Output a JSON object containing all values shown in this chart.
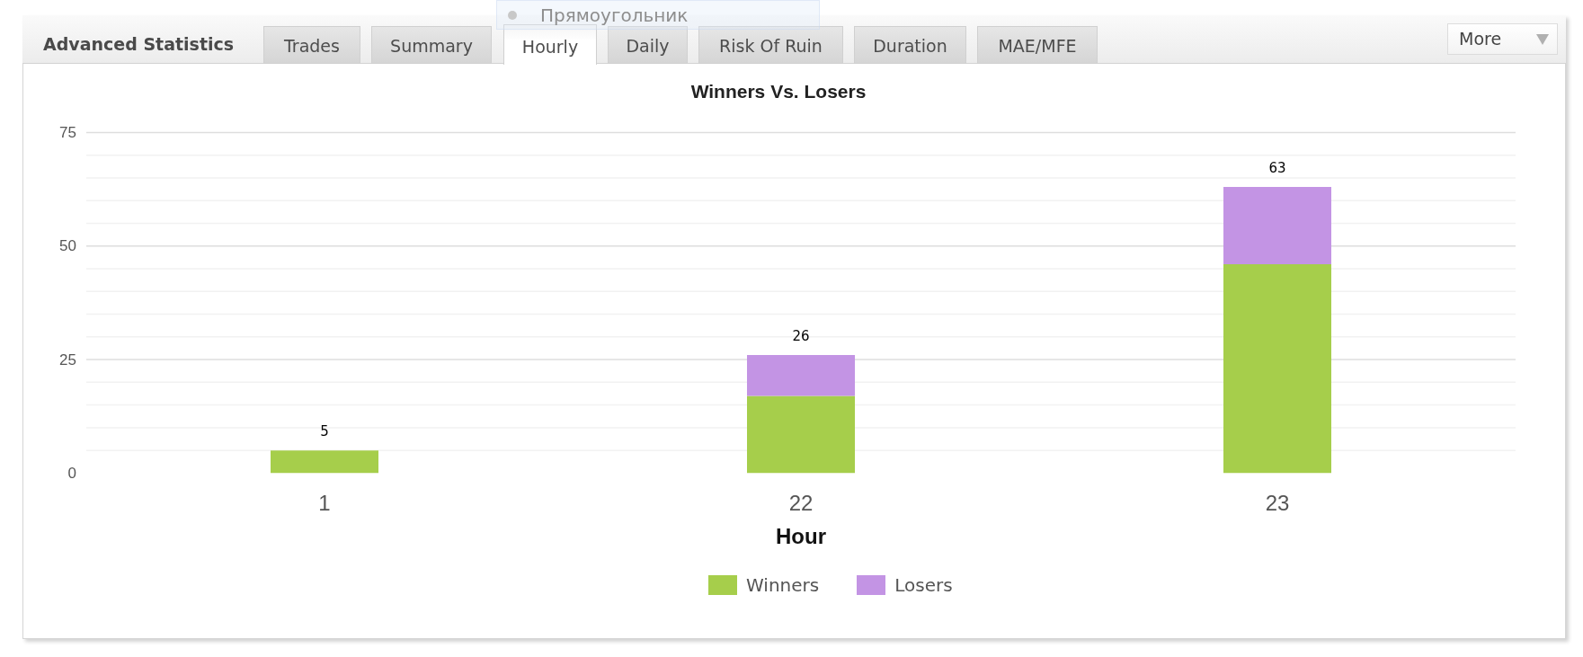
{
  "chart_data": {
    "type": "bar",
    "title": "Winners Vs. Losers",
    "xlabel": "Hour",
    "categories": [
      "1",
      "22",
      "23"
    ],
    "series": [
      {
        "name": "Winners",
        "color": "#a6ce4b",
        "values": [
          5,
          17,
          46
        ]
      },
      {
        "name": "Losers",
        "color": "#c394e4",
        "values": [
          0,
          9,
          17
        ]
      }
    ],
    "stacked": true,
    "totals": [
      "5",
      "26",
      "63"
    ],
    "ylim": [
      0,
      75
    ],
    "yticks": [
      0,
      {
        "value": 5,
        "label": null
      },
      {
        "value": 10,
        "label": null
      },
      {
        "value": 15,
        "label": null
      },
      {
        "value": 20,
        "label": null
      },
      25,
      {
        "value": 30,
        "label": null
      },
      {
        "value": 35,
        "label": null
      },
      {
        "value": 40,
        "label": null
      },
      {
        "value": 45,
        "label": null
      },
      50,
      {
        "value": 55,
        "label": null
      },
      {
        "value": 60,
        "label": null
      },
      {
        "value": 65,
        "label": null
      },
      {
        "value": 70,
        "label": null
      },
      75
    ],
    "grid": "y",
    "legend": "bottom",
    "annotations": [
      "Прямоугольник",
      "Advanced Statistics",
      "Trades",
      "Summary",
      "Hourly",
      "Daily",
      "Risk Of Ruin",
      "Duration",
      "MAE/MFE",
      "More"
    ]
  }
}
